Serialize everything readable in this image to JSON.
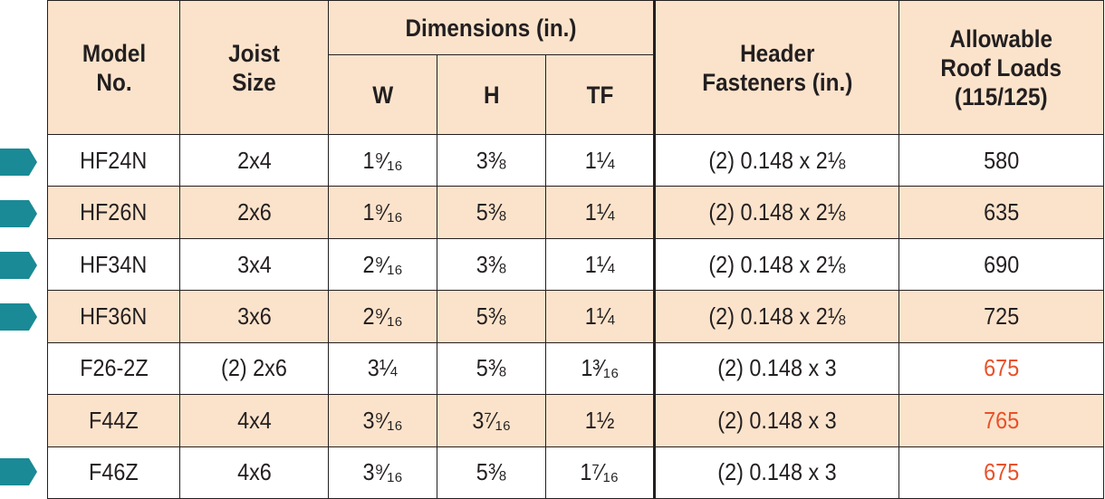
{
  "headers": {
    "model_line1": "Model",
    "model_line2": "No.",
    "joist_line1": "Joist",
    "joist_line2": "Size",
    "dimensions": "Dimensions (in.)",
    "w": "W",
    "h": "H",
    "tf": "TF",
    "fasteners_line1": "Header",
    "fasteners_line2": "Fasteners (in.)",
    "loads_line1": "Allowable",
    "loads_line2": "Roof Loads",
    "loads_line3": "(115/125)"
  },
  "rows": [
    {
      "model": "HF24N",
      "joist": "2x4",
      "w": "1⁹⁄₁₆",
      "h": "3⅜",
      "tf": "1¼",
      "fasteners": "(2) 0.148 x 2⅛",
      "load": "580",
      "load_highlight": false,
      "marker": true
    },
    {
      "model": "HF26N",
      "joist": "2x6",
      "w": "1⁹⁄₁₆",
      "h": "5⅜",
      "tf": "1¼",
      "fasteners": "(2) 0.148 x 2⅛",
      "load": "635",
      "load_highlight": false,
      "marker": true
    },
    {
      "model": "HF34N",
      "joist": "3x4",
      "w": "2⁹⁄₁₆",
      "h": "3⅜",
      "tf": "1¼",
      "fasteners": "(2) 0.148 x 2⅛",
      "load": "690",
      "load_highlight": false,
      "marker": true
    },
    {
      "model": "HF36N",
      "joist": "3x6",
      "w": "2⁹⁄₁₆",
      "h": "5⅜",
      "tf": "1¼",
      "fasteners": "(2) 0.148 x 2⅛",
      "load": "725",
      "load_highlight": false,
      "marker": true
    },
    {
      "model": "F26-2Z",
      "joist": "(2) 2x6",
      "w": "3¼",
      "h": "5⅜",
      "tf": "1³⁄₁₆",
      "fasteners": "(2) 0.148 x 3",
      "load": "675",
      "load_highlight": true,
      "marker": false
    },
    {
      "model": "F44Z",
      "joist": "4x4",
      "w": "3⁹⁄₁₆",
      "h": "3⁷⁄₁₆",
      "tf": "1½",
      "fasteners": "(2) 0.148 x 3",
      "load": "765",
      "load_highlight": true,
      "marker": false
    },
    {
      "model": "F46Z",
      "joist": "4x6",
      "w": "3⁹⁄₁₆",
      "h": "5⅜",
      "tf": "1⁷⁄₁₆",
      "fasteners": "(2) 0.148 x 3",
      "load": "675",
      "load_highlight": true,
      "marker": true
    }
  ],
  "colors": {
    "header_bg": "#fbe3cb",
    "shade_bg": "#fbe3cb",
    "marker": "#1a8a96",
    "highlight_text": "#e8512a"
  },
  "icons": {
    "row_marker": "arrow-marker-icon"
  }
}
